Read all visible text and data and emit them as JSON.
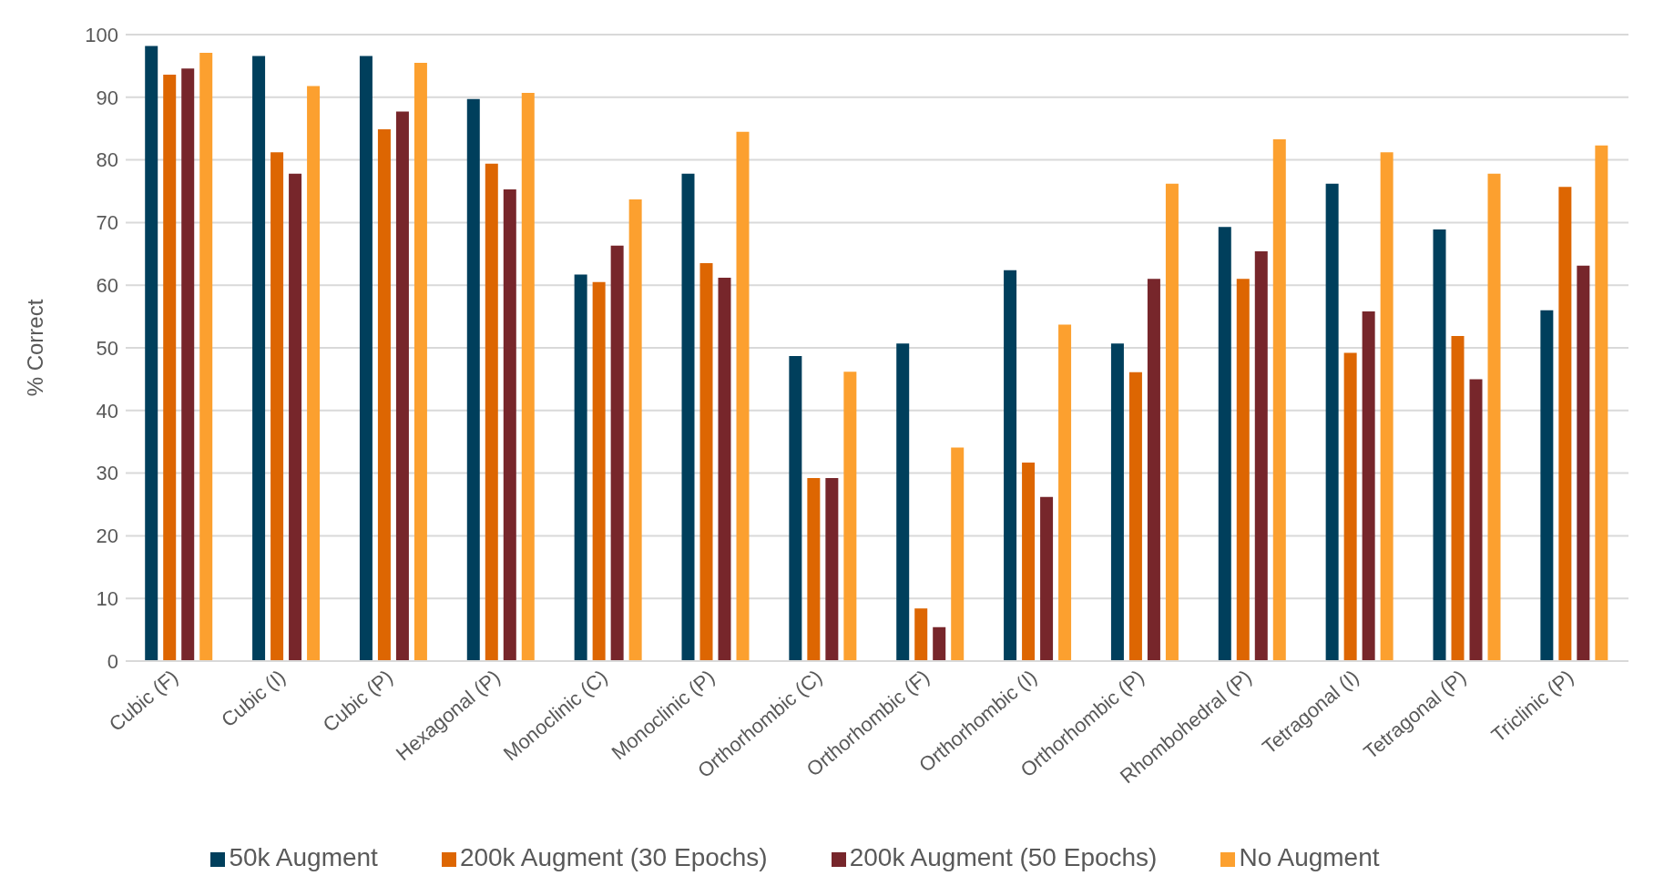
{
  "chart_data": {
    "type": "bar",
    "ylabel": "% Correct",
    "categories": [
      "Cubic (F)",
      "Cubic (I)",
      "Cubic (P)",
      "Hexagonal (P)",
      "Monoclinic (C)",
      "Monoclinic (P)",
      "Orthorhombic (C)",
      "Orthorhombic (F)",
      "Orthorhombic (I)",
      "Orthorhombic (P)",
      "Rhombohedral (P)",
      "Tetragonal (I)",
      "Tetragonal (P)",
      "Triclinic (P)"
    ],
    "series": [
      {
        "name": "50k Augment",
        "color": "#003f5c",
        "values": [
          98.2,
          96.6,
          96.6,
          89.7,
          61.7,
          77.8,
          48.7,
          50.7,
          62.4,
          50.7,
          69.3,
          76.2,
          68.9,
          56.0
        ]
      },
      {
        "name": "200k Augment (30 Epochs)",
        "color": "#dd6602",
        "values": [
          93.6,
          81.2,
          84.9,
          79.4,
          60.5,
          63.5,
          29.2,
          8.4,
          31.7,
          46.1,
          61.0,
          49.2,
          51.9,
          75.7
        ]
      },
      {
        "name": "200k Augment (50 Epochs)",
        "color": "#77262b",
        "values": [
          94.6,
          77.8,
          87.7,
          75.3,
          66.3,
          61.2,
          29.2,
          5.4,
          26.2,
          61.0,
          65.4,
          55.8,
          45.0,
          63.1
        ]
      },
      {
        "name": "No Augment",
        "color": "#fca02f",
        "values": [
          97.1,
          91.8,
          95.5,
          90.7,
          73.7,
          84.5,
          46.2,
          34.1,
          53.7,
          76.2,
          83.3,
          81.2,
          77.8,
          82.3
        ]
      }
    ],
    "ylim": [
      0,
      100
    ],
    "yticks": [
      0,
      10,
      20,
      30,
      40,
      50,
      60,
      70,
      80,
      90,
      100
    ],
    "grid": "y",
    "legend": "bottom"
  }
}
